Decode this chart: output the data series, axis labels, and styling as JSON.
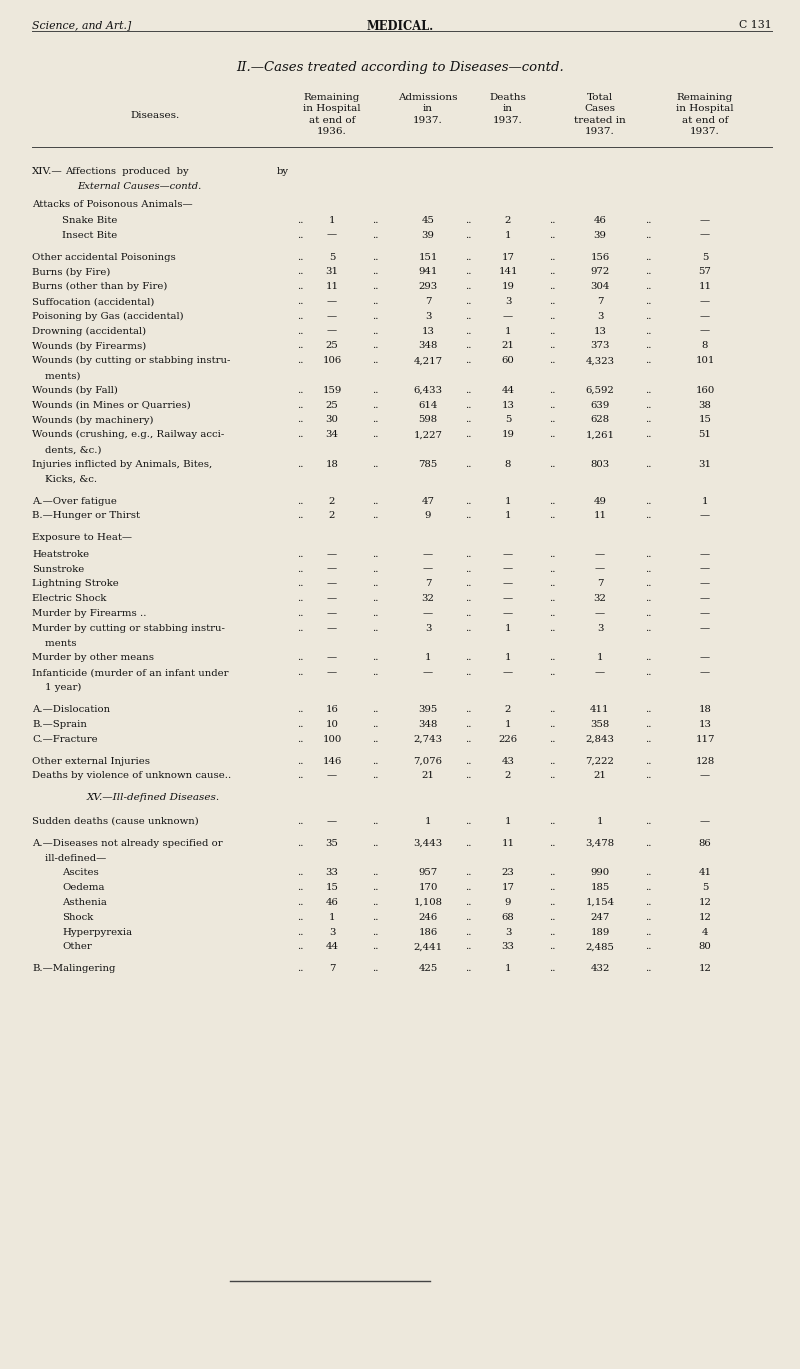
{
  "page_header_left": "Science, and Art.]",
  "page_header_center": "MEDICAL.",
  "page_header_right": "C 131",
  "title": "II.—Cases treated according to Diseases—contd.",
  "col_headers": [
    "Diseases.",
    "Remaining\nin Hospital\nat end of\n1936.",
    "Admissions\nin\n1937.",
    "Deaths\nin\n1937.",
    "Total\nCases\ntreated in\n1937.",
    "Remaining\nin Hospital\nat end of\n1937."
  ],
  "rows": [
    {
      "disease": "Snake Bite",
      "indent": 1,
      "rem1936": "1",
      "adm": "45",
      "deaths": "2",
      "total": "46",
      "rem1937": "—",
      "blank_before": false,
      "type": "data"
    },
    {
      "disease": "Insect Bite",
      "indent": 1,
      "rem1936": "—",
      "adm": "39",
      "deaths": "1",
      "total": "39",
      "rem1937": "—",
      "blank_before": false,
      "type": "data"
    },
    {
      "disease": "Other accidental Poisonings",
      "indent": 0,
      "rem1936": "5",
      "adm": "151",
      "deaths": "17",
      "total": "156",
      "rem1937": "5",
      "blank_before": true,
      "type": "data"
    },
    {
      "disease": "Burns (by Fire)",
      "indent": 0,
      "rem1936": "31",
      "adm": "941",
      "deaths": "141",
      "total": "972",
      "rem1937": "57",
      "blank_before": false,
      "type": "data"
    },
    {
      "disease": "Burns (other than by Fire)",
      "indent": 0,
      "rem1936": "11",
      "adm": "293",
      "deaths": "19",
      "total": "304",
      "rem1937": "11",
      "blank_before": false,
      "type": "data"
    },
    {
      "disease": "Suffocation (accidental)",
      "indent": 0,
      "rem1936": "—",
      "adm": "7",
      "deaths": "3",
      "total": "7",
      "rem1937": "—",
      "blank_before": false,
      "type": "data"
    },
    {
      "disease": "Poisoning by Gas (accidental)",
      "indent": 0,
      "rem1936": "—",
      "adm": "3",
      "deaths": "—",
      "total": "3",
      "rem1937": "—",
      "blank_before": false,
      "type": "data"
    },
    {
      "disease": "Drowning (accidental)",
      "indent": 0,
      "rem1936": "—",
      "adm": "13",
      "deaths": "1",
      "total": "13",
      "rem1937": "—",
      "blank_before": false,
      "type": "data"
    },
    {
      "disease": "Wounds (by Firearms)",
      "indent": 0,
      "rem1936": "25",
      "adm": "348",
      "deaths": "21",
      "total": "373",
      "rem1937": "8",
      "blank_before": false,
      "type": "data"
    },
    {
      "disease": "Wounds (by cutting or stabbing instru-",
      "disease2": "    ments)",
      "indent": 0,
      "rem1936": "106",
      "adm": "4,217",
      "deaths": "60",
      "total": "4,323",
      "rem1937": "101",
      "blank_before": false,
      "type": "data2"
    },
    {
      "disease": "Wounds (by Fall)",
      "indent": 0,
      "rem1936": "159",
      "adm": "6,433",
      "deaths": "44",
      "total": "6,592",
      "rem1937": "160",
      "blank_before": false,
      "type": "data"
    },
    {
      "disease": "Wounds (in Mines or Quarries)",
      "indent": 0,
      "rem1936": "25",
      "adm": "614",
      "deaths": "13",
      "total": "639",
      "rem1937": "38",
      "blank_before": false,
      "type": "data"
    },
    {
      "disease": "Wounds (by machinery)",
      "indent": 0,
      "rem1936": "30",
      "adm": "598",
      "deaths": "5",
      "total": "628",
      "rem1937": "15",
      "blank_before": false,
      "type": "data"
    },
    {
      "disease": "Wounds (crushing, e.g., Railway acci-",
      "disease2": "    dents, &c.)",
      "indent": 0,
      "rem1936": "34",
      "adm": "1,227",
      "deaths": "19",
      "total": "1,261",
      "rem1937": "51",
      "blank_before": false,
      "type": "data2"
    },
    {
      "disease": "Injuries inflicted by Animals, Bites,",
      "disease2": "    Kicks, &c.",
      "indent": 0,
      "rem1936": "18",
      "adm": "785",
      "deaths": "8",
      "total": "803",
      "rem1937": "31",
      "blank_before": false,
      "type": "data2"
    },
    {
      "disease": "A.—Over fatigue",
      "indent": 0,
      "rem1936": "2",
      "adm": "47",
      "deaths": "1",
      "total": "49",
      "rem1937": "1",
      "blank_before": true,
      "type": "data"
    },
    {
      "disease": "B.—Hunger or Thirst",
      "indent": 0,
      "rem1936": "2",
      "adm": "9",
      "deaths": "1",
      "total": "11",
      "rem1937": "—",
      "blank_before": false,
      "type": "data"
    },
    {
      "disease": "Exposure to Heat—",
      "indent": 0,
      "rem1936": "",
      "adm": "",
      "deaths": "",
      "total": "",
      "rem1937": "",
      "blank_before": true,
      "type": "subheader"
    },
    {
      "disease": "Heatstroke",
      "indent": 0,
      "rem1936": "—",
      "adm": "—",
      "deaths": "—",
      "total": "—",
      "rem1937": "—",
      "blank_before": false,
      "type": "data"
    },
    {
      "disease": "Sunstroke",
      "indent": 0,
      "rem1936": "—",
      "adm": "—",
      "deaths": "—",
      "total": "—",
      "rem1937": "—",
      "blank_before": false,
      "type": "data"
    },
    {
      "disease": "Lightning Stroke",
      "indent": 0,
      "rem1936": "—",
      "adm": "7",
      "deaths": "—",
      "total": "7",
      "rem1937": "—",
      "blank_before": false,
      "type": "data"
    },
    {
      "disease": "Electric Shock",
      "indent": 0,
      "rem1936": "—",
      "adm": "32",
      "deaths": "—",
      "total": "32",
      "rem1937": "—",
      "blank_before": false,
      "type": "data"
    },
    {
      "disease": "Murder by Firearms ..",
      "indent": 0,
      "rem1936": "—",
      "adm": "—",
      "deaths": "—",
      "total": "—",
      "rem1937": "—",
      "blank_before": false,
      "type": "data"
    },
    {
      "disease": "Murder by cutting or stabbing instru-",
      "disease2": "    ments",
      "indent": 0,
      "rem1936": "—",
      "adm": "3",
      "deaths": "1",
      "total": "3",
      "rem1937": "—",
      "blank_before": false,
      "type": "data2"
    },
    {
      "disease": "Murder by other means",
      "indent": 0,
      "rem1936": "—",
      "adm": "1",
      "deaths": "1",
      "total": "1",
      "rem1937": "—",
      "blank_before": false,
      "type": "data"
    },
    {
      "disease": "Infanticide (murder of an infant under",
      "disease2": "    1 year)",
      "indent": 0,
      "rem1936": "—",
      "adm": "—",
      "deaths": "—",
      "total": "—",
      "rem1937": "—",
      "blank_before": false,
      "type": "data2"
    },
    {
      "disease": "A.—Dislocation",
      "indent": 0,
      "rem1936": "16",
      "adm": "395",
      "deaths": "2",
      "total": "411",
      "rem1937": "18",
      "blank_before": true,
      "type": "data"
    },
    {
      "disease": "B.—Sprain",
      "indent": 0,
      "rem1936": "10",
      "adm": "348",
      "deaths": "1",
      "total": "358",
      "rem1937": "13",
      "blank_before": false,
      "type": "data"
    },
    {
      "disease": "C.—Fracture",
      "indent": 0,
      "rem1936": "100",
      "adm": "2,743",
      "deaths": "226",
      "total": "2,843",
      "rem1937": "117",
      "blank_before": false,
      "type": "data"
    },
    {
      "disease": "Other external Injuries",
      "indent": 0,
      "rem1936": "146",
      "adm": "7,076",
      "deaths": "43",
      "total": "7,222",
      "rem1937": "128",
      "blank_before": true,
      "type": "data"
    },
    {
      "disease": "Deaths by violence of unknown cause..",
      "indent": 0,
      "rem1936": "—",
      "adm": "21",
      "deaths": "2",
      "total": "21",
      "rem1937": "—",
      "blank_before": false,
      "type": "data"
    },
    {
      "disease": "XV.—Ill-defined Diseases.",
      "indent": 0,
      "rem1936": "",
      "adm": "",
      "deaths": "",
      "total": "",
      "rem1937": "",
      "blank_before": true,
      "type": "section"
    },
    {
      "disease": "Sudden deaths (cause unknown)",
      "indent": 0,
      "rem1936": "—",
      "adm": "1",
      "deaths": "1",
      "total": "1",
      "rem1937": "—",
      "blank_before": true,
      "type": "data"
    },
    {
      "disease": "A.—Diseases not already specified or",
      "disease2": "    ill-defined—",
      "indent": 0,
      "rem1936": "35",
      "adm": "3,443",
      "deaths": "11",
      "total": "3,478",
      "rem1937": "86",
      "blank_before": true,
      "type": "data2"
    },
    {
      "disease": "Ascites",
      "indent": 1,
      "rem1936": "33",
      "adm": "957",
      "deaths": "23",
      "total": "990",
      "rem1937": "41",
      "blank_before": false,
      "type": "data"
    },
    {
      "disease": "Oedema",
      "indent": 1,
      "rem1936": "15",
      "adm": "170",
      "deaths": "17",
      "total": "185",
      "rem1937": "5",
      "blank_before": false,
      "type": "data"
    },
    {
      "disease": "Asthenia",
      "indent": 1,
      "rem1936": "46",
      "adm": "1,108",
      "deaths": "9",
      "total": "1,154",
      "rem1937": "12",
      "blank_before": false,
      "type": "data"
    },
    {
      "disease": "Shock",
      "indent": 1,
      "rem1936": "1",
      "adm": "246",
      "deaths": "68",
      "total": "247",
      "rem1937": "12",
      "blank_before": false,
      "type": "data"
    },
    {
      "disease": "Hyperpyrexia",
      "indent": 1,
      "rem1936": "3",
      "adm": "186",
      "deaths": "3",
      "total": "189",
      "rem1937": "4",
      "blank_before": false,
      "type": "data"
    },
    {
      "disease": "Other",
      "indent": 1,
      "rem1936": "44",
      "adm": "2,441",
      "deaths": "33",
      "total": "2,485",
      "rem1937": "80",
      "blank_before": false,
      "type": "data"
    },
    {
      "disease": "B.—Malingering",
      "indent": 0,
      "rem1936": "7",
      "adm": "425",
      "deaths": "1",
      "total": "432",
      "rem1937": "12",
      "blank_before": true,
      "type": "data"
    }
  ],
  "bg_color": "#ede8dc",
  "text_color": "#111111",
  "line_color": "#444444",
  "fig_w": 8.0,
  "fig_h": 13.69,
  "dpi": 100
}
